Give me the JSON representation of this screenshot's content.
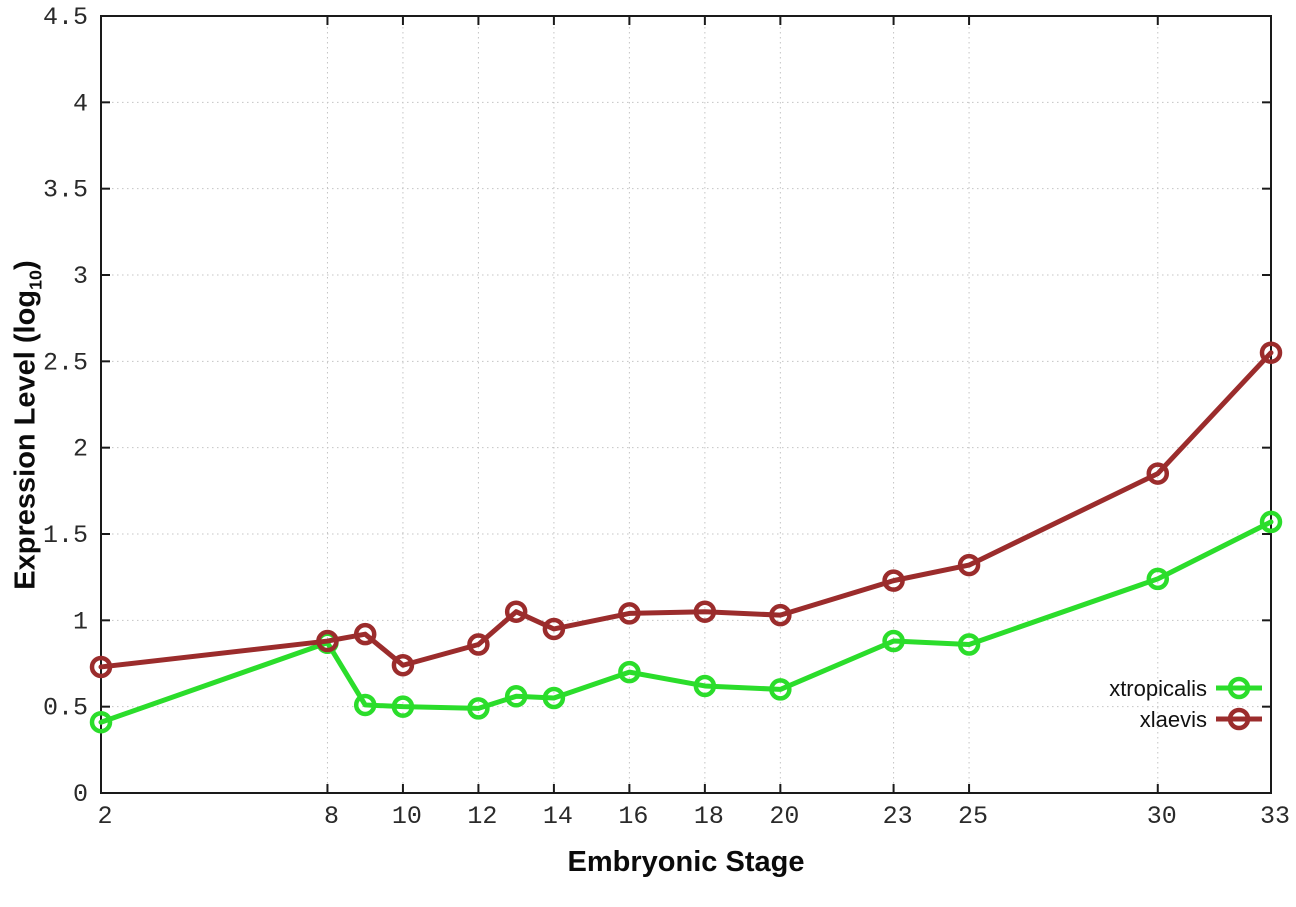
{
  "chart_data": {
    "type": "line",
    "title": "",
    "xlabel": "Embryonic Stage",
    "ylabel": "Expression Level (log10)",
    "ylabel_parts": {
      "main": "Expression Level (log",
      "sub": "10",
      "end": ")"
    },
    "x": [
      2,
      8,
      9,
      10,
      12,
      13,
      14,
      16,
      18,
      20,
      23,
      25,
      30,
      33
    ],
    "series": [
      {
        "name": "xtropicalis",
        "color": "#2bdd2b",
        "values": [
          0.41,
          0.87,
          0.51,
          0.5,
          0.49,
          0.56,
          0.55,
          0.7,
          0.62,
          0.6,
          0.88,
          0.86,
          1.24,
          1.57
        ]
      },
      {
        "name": "xlaevis",
        "color": "#9b2c2c",
        "values": [
          0.73,
          0.88,
          0.92,
          0.74,
          0.86,
          1.05,
          0.95,
          1.04,
          1.05,
          1.03,
          1.23,
          1.32,
          1.85,
          2.55
        ]
      }
    ],
    "xticks": [
      2,
      8,
      10,
      12,
      14,
      16,
      18,
      20,
      23,
      25,
      30,
      33
    ],
    "yticks": [
      0,
      0.5,
      1,
      1.5,
      2,
      2.5,
      3,
      3.5,
      4,
      4.5
    ],
    "xlim": [
      2,
      33
    ],
    "ylim": [
      0,
      4.5
    ],
    "grid": true,
    "legend_position": "inside-bottom-right"
  },
  "colors": {
    "background": "#ffffff",
    "axis": "#1a1a1a",
    "grid": "#c4c4c4",
    "xtropicalis": "#2bdd2b",
    "xlaevis": "#9b2c2c"
  }
}
